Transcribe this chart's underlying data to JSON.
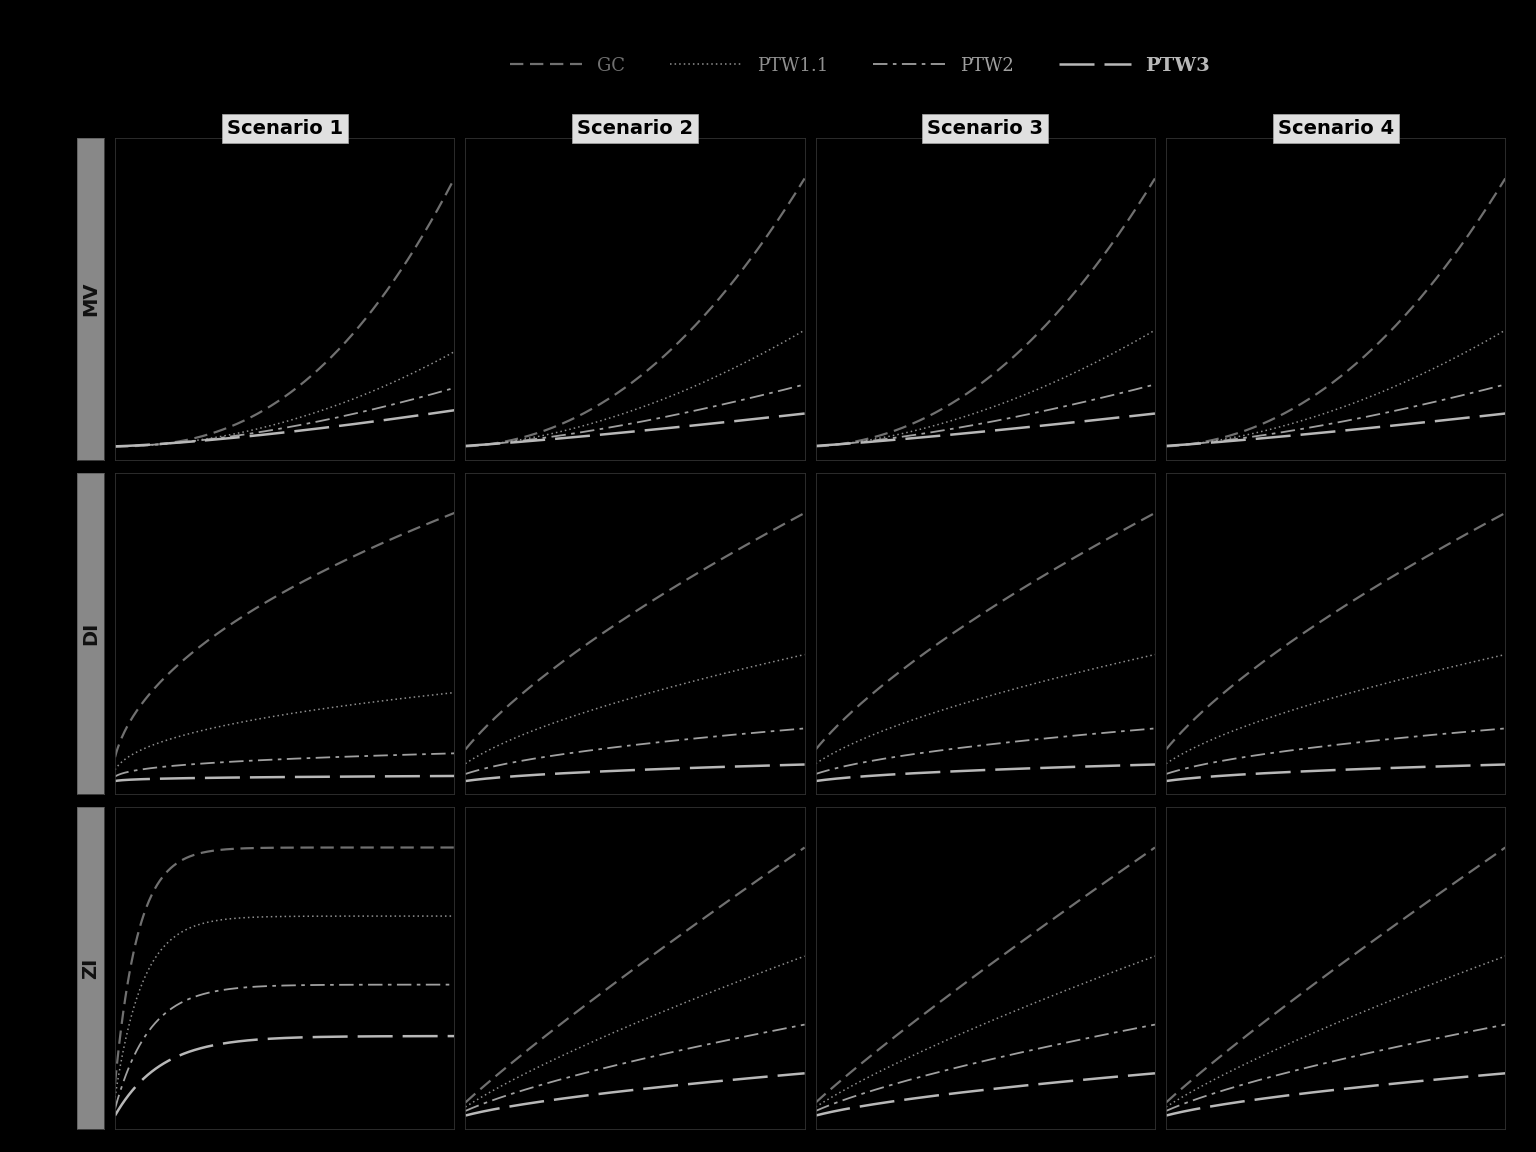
{
  "scenarios": [
    "Scenario 1",
    "Scenario 2",
    "Scenario 3",
    "Scenario 4"
  ],
  "row_labels": [
    "MV",
    "DI",
    "ZI"
  ],
  "distributions": [
    "GC",
    "PTW1.1",
    "PTW2",
    "PTW3"
  ],
  "colors": {
    "GC": "#707070",
    "PTW1.1": "#909090",
    "PTW2": "#a0a0a0",
    "PTW3": "#b8b8b8"
  },
  "linewidths": {
    "GC": 1.6,
    "PTW1.1": 1.1,
    "PTW2": 1.3,
    "PTW3": 1.8
  },
  "background_color": "#000000",
  "panel_background": "#000000",
  "header_background": "#e0e0e0",
  "row_label_background": "#888888",
  "header_text_color": "#000000",
  "row_label_text_color": "#111111",
  "fig_width": 15.36,
  "fig_height": 11.52,
  "legend_text_color": "#909090",
  "legend_fontsize": 13,
  "header_fontsize": 14,
  "row_label_fontsize": 14
}
